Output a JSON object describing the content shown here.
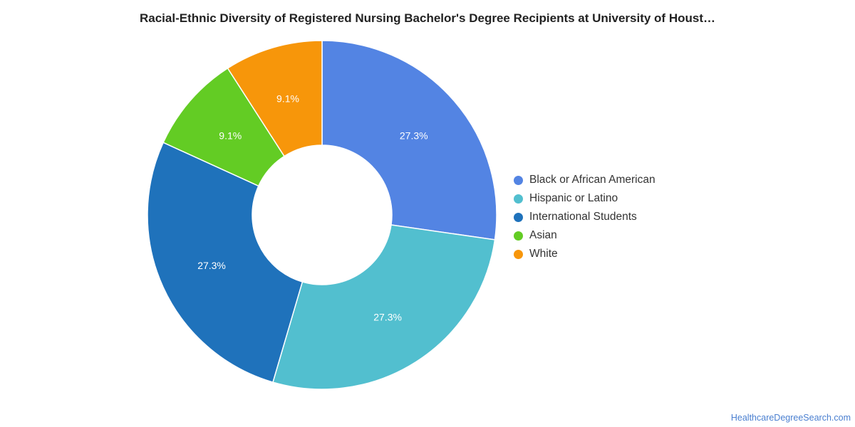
{
  "chart_data": {
    "type": "pie",
    "title": "Racial-Ethnic Diversity of Registered Nursing Bachelor's Degree Recipients at University of Houst…",
    "categories": [
      "Black or African American",
      "Hispanic or Latino",
      "International Students",
      "Asian",
      "White"
    ],
    "values": [
      27.3,
      27.3,
      27.3,
      9.1,
      9.1
    ],
    "labels": [
      "27.3%",
      "27.3%",
      "27.3%",
      "9.1%",
      "9.1%"
    ],
    "colors": [
      "#5384e3",
      "#52bfcf",
      "#1f72bb",
      "#63cc24",
      "#f7960a"
    ],
    "donut": true,
    "legend_position": "right"
  },
  "watermark": "HealthcareDegreeSearch.com"
}
